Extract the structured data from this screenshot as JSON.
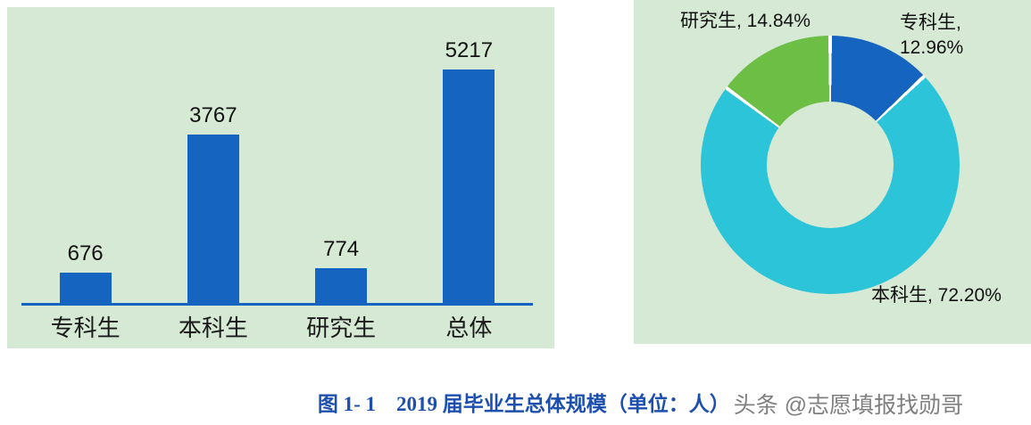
{
  "colors": {
    "panel_background": "#d6e9d4",
    "bar_blue": "#1565c0",
    "axis_blue": "#1565c0",
    "donut_blue": "#1565c0",
    "donut_cyan": "#2bc4d8",
    "donut_green": "#6cbe45",
    "caption_blue": "#1d4fae",
    "watermark_gray": "#7f7f7f",
    "slice_gap_white": "#ffffff"
  },
  "chart_data": [
    {
      "type": "bar",
      "title": "",
      "categories": [
        "专科生",
        "本科生",
        "研究生",
        "总体"
      ],
      "values": [
        676,
        3767,
        774,
        5217
      ],
      "xlabel": "",
      "ylabel": "",
      "ylim": [
        0,
        5500
      ],
      "grid": false,
      "legend_position": "none",
      "data_labels_shown": true,
      "bar_color": "#1565c0"
    },
    {
      "type": "pie",
      "donut": true,
      "title": "",
      "labels": [
        "专科生",
        "本科生",
        "研究生"
      ],
      "values": [
        12.96,
        72.2,
        14.84
      ],
      "unit": "%",
      "slice_colors": [
        "#1565c0",
        "#2bc4d8",
        "#6cbe45"
      ],
      "label_texts": [
        "专科生, 12.96%",
        "本科生, 72.20%",
        "研究生, 14.84%"
      ],
      "legend_position": "none",
      "start_angle_deg": 0,
      "direction": "clockwise"
    }
  ],
  "caption": {
    "text": "图 1- 1    2019 届毕业生总体规模（单位：人）"
  },
  "watermark": {
    "text": "头条 @志愿填报找勋哥"
  }
}
